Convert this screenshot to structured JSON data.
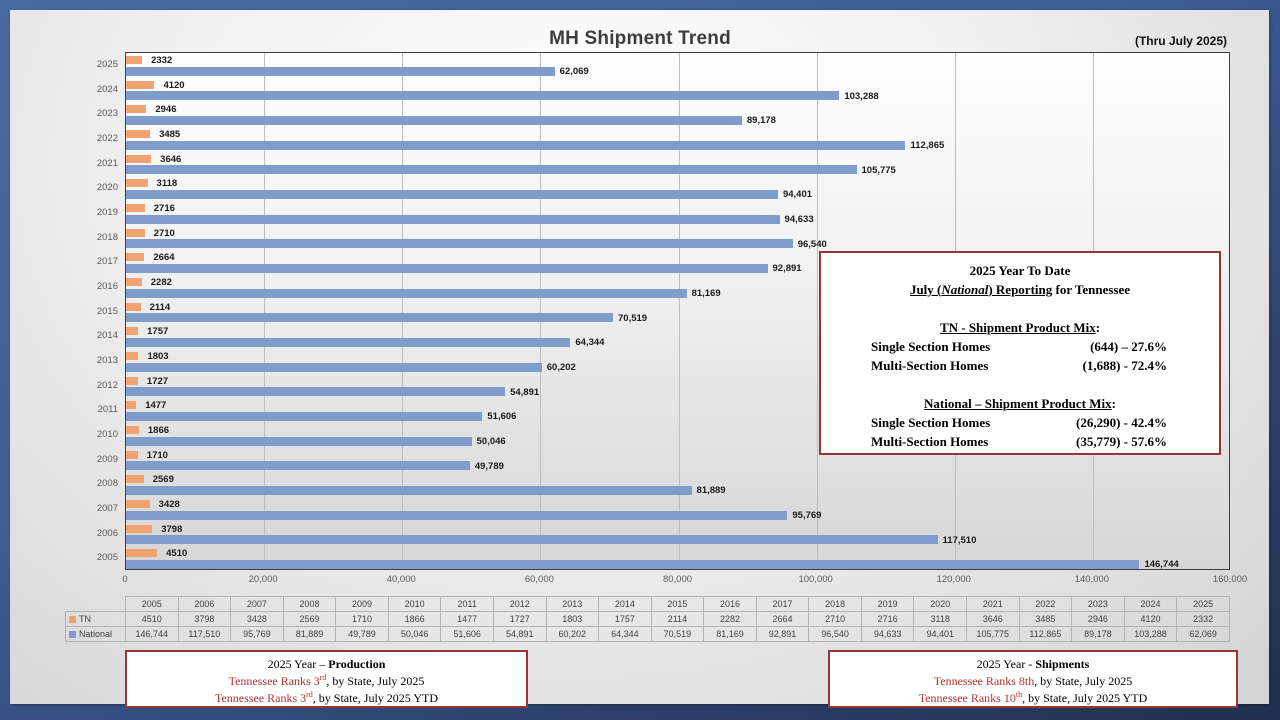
{
  "title": "MH Shipment Trend",
  "subtitle": "(Thru July 2025)",
  "chart_data": {
    "type": "bar",
    "orientation": "horizontal",
    "title": "MH Shipment Trend",
    "categories": [
      2005,
      2006,
      2007,
      2008,
      2009,
      2010,
      2011,
      2012,
      2013,
      2014,
      2015,
      2016,
      2017,
      2018,
      2019,
      2020,
      2021,
      2022,
      2023,
      2024,
      2025
    ],
    "series": [
      {
        "name": "TN",
        "color": "#f0a472",
        "values": [
          4510,
          3798,
          3428,
          2569,
          1710,
          1866,
          1477,
          1727,
          1803,
          1757,
          2114,
          2282,
          2664,
          2710,
          2716,
          3118,
          3646,
          3485,
          2946,
          4120,
          2332
        ]
      },
      {
        "name": "National",
        "color": "#7f9ccb",
        "values": [
          146744,
          117510,
          95769,
          81889,
          49789,
          50046,
          51606,
          54891,
          60202,
          64344,
          70519,
          81169,
          92891,
          96540,
          94633,
          94401,
          105775,
          112865,
          89178,
          103288,
          62069
        ]
      }
    ],
    "xlim": [
      0,
      160000
    ],
    "x_tick_step": 20000,
    "grid": true,
    "category_order_display": "2025 at top, 2005 at bottom",
    "legend_position": "table-left"
  },
  "ytd_box": {
    "line1": "2025 Year To Date",
    "line2_pre": "July (",
    "line2_italic": "National",
    "line2_post": ") Reporting",
    "line2_rest": " for Tennessee",
    "header_suffix": ":",
    "tn_header": "TN - Shipment Product Mix",
    "tn_rows": [
      {
        "label": "Single Section Homes",
        "value": "(644) – 27.6%"
      },
      {
        "label": "Multi-Section Homes",
        "value": "(1,688) - 72.4%"
      }
    ],
    "national_header": "National – Shipment Product Mix",
    "national_rows": [
      {
        "label": "Single Section Homes",
        "value": "(26,290) - 42.4%"
      },
      {
        "label": "Multi-Section Homes",
        "value": "(35,779) - 57.6%"
      }
    ]
  },
  "production_box": {
    "title_prefix": "2025 Year – ",
    "title_bold": "Production",
    "lines": [
      {
        "red": "Tennessee Ranks 3",
        "sup": "rd",
        "rest": ", by State, July 2025"
      },
      {
        "red": "Tennessee Ranks 3",
        "sup": "rd",
        "rest": ", by State, July 2025 YTD"
      }
    ]
  },
  "shipments_box": {
    "title_prefix": "2025 Year - ",
    "title_bold": "Shipments",
    "lines": [
      {
        "red": "Tennessee Ranks 8th",
        "sup": "",
        "rest": ", by State, July 2025"
      },
      {
        "red": "Tennessee Ranks 10",
        "sup": "th",
        "rest": ", by State, July 2025 YTD"
      }
    ]
  }
}
